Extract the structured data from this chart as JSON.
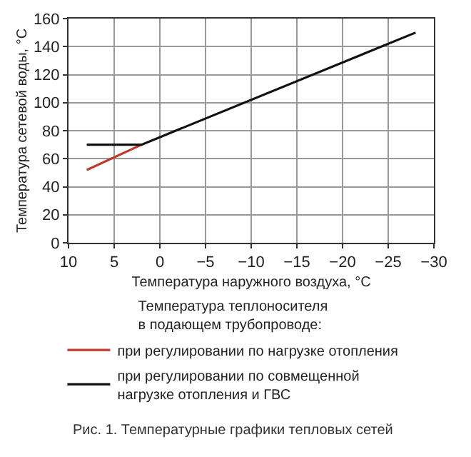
{
  "chart_data": {
    "type": "line",
    "xlabel": "Температура наружного воздуха, °C",
    "ylabel": "Температура сетевой воды, °C",
    "legend_title": "Температура теплоносителя\nв подающем трубопроводе:",
    "series": [
      {
        "name": "при регулировании по нагрузке отопления",
        "color": "#c0392b",
        "x": [
          8,
          2
        ],
        "values": [
          52,
          70
        ]
      },
      {
        "name": "при регулировании по совмещенной\nнагрузке отопления и ГВС",
        "color": "#111111",
        "x": [
          8,
          2,
          -28
        ],
        "values": [
          70,
          70,
          150
        ]
      }
    ],
    "xlim": [
      10,
      -30
    ],
    "xticks": [
      10,
      5,
      0,
      {
        "value": -5,
        "label": "−5"
      },
      {
        "value": -10,
        "label": "−10"
      },
      {
        "value": -15,
        "label": "−15"
      },
      {
        "value": -20,
        "label": "−20"
      },
      {
        "value": -25,
        "label": "−25"
      },
      {
        "value": -30,
        "label": "−30"
      }
    ],
    "ylim": [
      0,
      160
    ],
    "yticks": [
      0,
      20,
      40,
      60,
      80,
      100,
      120,
      140,
      160
    ],
    "grid": true,
    "legend": "bottom",
    "marker": "none",
    "line_style": "solid",
    "annotations": [
      "Рис. 1. Температурные графики тепловых сетей"
    ]
  }
}
